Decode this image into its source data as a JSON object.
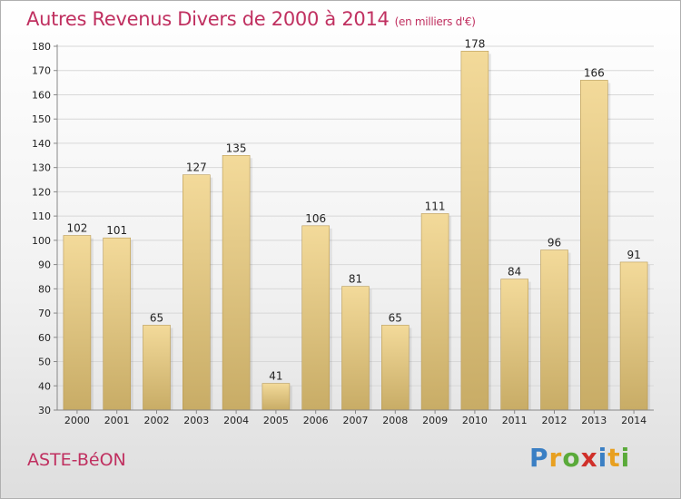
{
  "header": {
    "title": "Autres Revenus Divers de 2000 à 2014",
    "unit": "(en milliers d'€)"
  },
  "commune": "ASTE-BéON",
  "logo": {
    "text": "Proxiti",
    "letters": [
      {
        "char": "P",
        "color": "#3a7fc4"
      },
      {
        "char": "r",
        "color": "#e8a020"
      },
      {
        "char": "o",
        "color": "#5aaa3a"
      },
      {
        "char": "x",
        "color": "#d0302a"
      },
      {
        "char": "i",
        "color": "#3a7fc4"
      },
      {
        "char": "t",
        "color": "#e8a020"
      },
      {
        "char": "i",
        "color": "#5aaa3a"
      }
    ]
  },
  "colors": {
    "title": "#c03060",
    "bar_light": "#f3da9a",
    "bar_dark": "#c8ac66",
    "grid": "#d8d8d8"
  },
  "chart_data": {
    "type": "bar",
    "categories": [
      "2000",
      "2001",
      "2002",
      "2003",
      "2004",
      "2005",
      "2006",
      "2007",
      "2008",
      "2009",
      "2010",
      "2011",
      "2012",
      "2013",
      "2014"
    ],
    "values": [
      102,
      101,
      65,
      127,
      135,
      41,
      106,
      81,
      65,
      111,
      178,
      84,
      96,
      166,
      91
    ],
    "ylim": [
      30,
      180
    ],
    "yticks": [
      30,
      40,
      50,
      60,
      70,
      80,
      90,
      100,
      110,
      120,
      130,
      140,
      150,
      160,
      170,
      180
    ],
    "grid": true
  }
}
